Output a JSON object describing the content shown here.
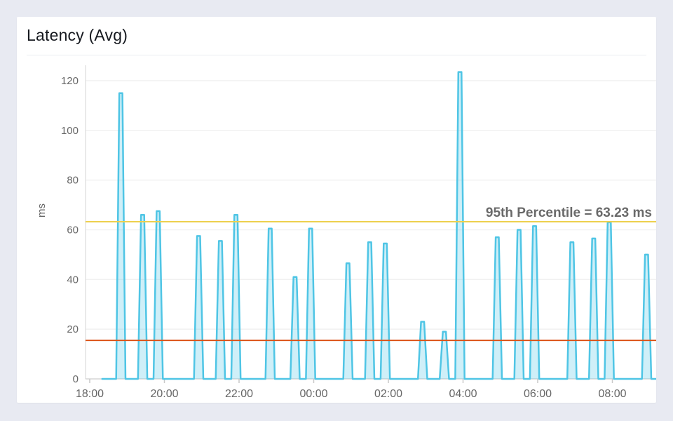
{
  "card": {
    "title": "Latency (Avg)"
  },
  "chart_data": {
    "type": "line",
    "title": "Latency (Avg)",
    "xlabel": "",
    "ylabel": "ms",
    "ylim": [
      0,
      126
    ],
    "x_range": [
      "17:53",
      "09:12"
    ],
    "grid": "horizontal",
    "y_ticks": [
      0,
      20,
      40,
      60,
      80,
      100,
      120
    ],
    "x_ticks": [
      "18:00",
      "20:00",
      "22:00",
      "00:00",
      "02:00",
      "04:00",
      "06:00",
      "08:00"
    ],
    "series_start_time": "18:20",
    "series_name": "Latency (Avg)",
    "spikes": [
      {
        "t": "18:50",
        "v": 115
      },
      {
        "t": "19:25",
        "v": 66
      },
      {
        "t": "19:50",
        "v": 67.5
      },
      {
        "t": "20:55",
        "v": 57.5
      },
      {
        "t": "21:30",
        "v": 55.5
      },
      {
        "t": "21:55",
        "v": 66
      },
      {
        "t": "22:50",
        "v": 60.5
      },
      {
        "t": "23:30",
        "v": 41
      },
      {
        "t": "23:55",
        "v": 60.5
      },
      {
        "t": "00:55",
        "v": 46.5
      },
      {
        "t": "01:30",
        "v": 55
      },
      {
        "t": "01:55",
        "v": 54.5
      },
      {
        "t": "02:55",
        "v": 23
      },
      {
        "t": "03:30",
        "v": 19
      },
      {
        "t": "03:55",
        "v": 123.5
      },
      {
        "t": "04:55",
        "v": 57
      },
      {
        "t": "05:30",
        "v": 60
      },
      {
        "t": "05:55",
        "v": 61.5
      },
      {
        "t": "06:55",
        "v": 55
      },
      {
        "t": "07:30",
        "v": 56.5
      },
      {
        "t": "07:55",
        "v": 63
      },
      {
        "t": "08:55",
        "v": 50
      }
    ],
    "thresholds": [
      {
        "name": "95th-percentile",
        "value": 63.23,
        "label": "95th Percentile = 63.23 ms",
        "color": "#edd04e"
      },
      {
        "name": "alarm-threshold",
        "value": 15.5,
        "label": "",
        "color": "#dc5318"
      }
    ],
    "colors": {
      "line": "#4fc5e5",
      "fill": "rgba(79,197,229,0.27)",
      "gridline": "#f1f1f1",
      "axis": "#d6d6d6",
      "tick": "#c9c9c9",
      "axis_text": "#666666",
      "annotation_text": "#6a6a6a"
    }
  }
}
